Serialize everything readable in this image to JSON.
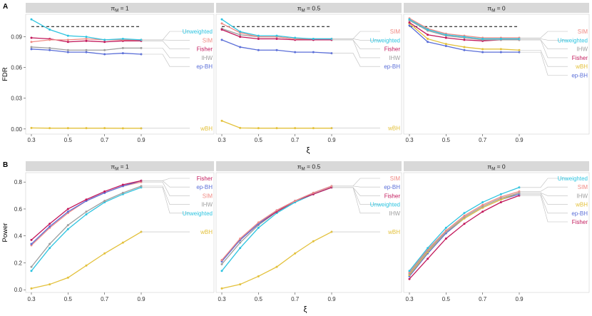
{
  "figure": {
    "panel_A_letter": "A",
    "panel_B_letter": "B",
    "xlabel": "ξ",
    "strip_prefix": "π",
    "strip_sub": "M",
    "strip_values": [
      "1",
      "0.5",
      "0"
    ]
  },
  "colors": {
    "Unweighted": "#2ec4e0",
    "SIM": "#f08a84",
    "Fisher": "#c2185b",
    "IHW": "#9e9e9e",
    "ep-BH": "#5b6fd8",
    "wBH": "#e3c13b",
    "reference_line": "#000000",
    "strip_bg": "#d9d9d9",
    "label_leader": "#bdbdbd"
  },
  "chart_data": [
    {
      "type": "line",
      "panel": "A",
      "facet": "πM = 1",
      "ylabel": "FDR",
      "xlabel": "ξ",
      "x": [
        0.3,
        0.4,
        0.5,
        0.6,
        0.7,
        0.8,
        0.9
      ],
      "xticks": [
        "0.3",
        "0.5",
        "0.7",
        "0.9"
      ],
      "ylim": [
        -0.005,
        0.112
      ],
      "yticks": [
        "0.00",
        "0.03",
        "0.06",
        "0.09"
      ],
      "reference_line": 0.1,
      "label_order": [
        "Unweighted",
        "SIM",
        "Fisher",
        "IHW",
        "ep-BH",
        "wBH"
      ],
      "series": [
        {
          "name": "Unweighted",
          "values": [
            0.107,
            0.097,
            0.091,
            0.09,
            0.087,
            0.088,
            0.087
          ]
        },
        {
          "name": "SIM",
          "values": [
            0.085,
            0.087,
            0.087,
            0.088,
            0.087,
            0.087,
            0.087
          ]
        },
        {
          "name": "Fisher",
          "values": [
            0.089,
            0.088,
            0.085,
            0.086,
            0.085,
            0.086,
            0.086
          ]
        },
        {
          "name": "IHW",
          "values": [
            0.08,
            0.079,
            0.077,
            0.077,
            0.077,
            0.079,
            0.079
          ]
        },
        {
          "name": "ep-BH",
          "values": [
            0.078,
            0.077,
            0.075,
            0.075,
            0.073,
            0.074,
            0.073
          ]
        },
        {
          "name": "wBH",
          "values": [
            0.001,
            0.0008,
            0.0008,
            0.0008,
            0.0008,
            0.0007,
            0.0007
          ]
        }
      ]
    },
    {
      "type": "line",
      "panel": "A",
      "facet": "πM = 0.5",
      "ylabel": "FDR",
      "xlabel": "ξ",
      "x": [
        0.3,
        0.4,
        0.5,
        0.6,
        0.7,
        0.8,
        0.9
      ],
      "xticks": [
        "0.3",
        "0.5",
        "0.7",
        "0.9"
      ],
      "ylim": [
        -0.005,
        0.112
      ],
      "reference_line": 0.1,
      "label_order": [
        "SIM",
        "Unweighted",
        "Fisher",
        "IHW",
        "ep-BH",
        "wBH"
      ],
      "series": [
        {
          "name": "Unweighted",
          "values": [
            0.107,
            0.095,
            0.091,
            0.091,
            0.089,
            0.088,
            0.088
          ]
        },
        {
          "name": "SIM",
          "values": [
            0.103,
            0.094,
            0.09,
            0.09,
            0.088,
            0.088,
            0.088
          ]
        },
        {
          "name": "Fisher",
          "values": [
            0.097,
            0.09,
            0.088,
            0.088,
            0.087,
            0.087,
            0.087
          ]
        },
        {
          "name": "IHW",
          "values": [
            0.098,
            0.092,
            0.09,
            0.09,
            0.088,
            0.087,
            0.087
          ]
        },
        {
          "name": "ep-BH",
          "values": [
            0.087,
            0.08,
            0.077,
            0.077,
            0.075,
            0.075,
            0.074
          ]
        },
        {
          "name": "wBH",
          "values": [
            0.008,
            0.001,
            0.0008,
            0.0008,
            0.0008,
            0.0008,
            0.0008
          ]
        }
      ]
    },
    {
      "type": "line",
      "panel": "A",
      "facet": "πM = 0",
      "ylabel": "FDR",
      "xlabel": "ξ",
      "x": [
        0.3,
        0.4,
        0.5,
        0.6,
        0.7,
        0.8,
        0.9
      ],
      "xticks": [
        "0.3",
        "0.5",
        "0.7",
        "0.9"
      ],
      "ylim": [
        -0.005,
        0.112
      ],
      "reference_line": 0.1,
      "label_order": [
        "SIM",
        "Unweighted",
        "IHW",
        "Fisher",
        "wBH",
        "ep-BH"
      ],
      "series": [
        {
          "name": "Unweighted",
          "values": [
            0.107,
            0.097,
            0.092,
            0.09,
            0.088,
            0.088,
            0.088
          ]
        },
        {
          "name": "SIM",
          "values": [
            0.108,
            0.098,
            0.093,
            0.091,
            0.089,
            0.089,
            0.089
          ]
        },
        {
          "name": "IHW",
          "values": [
            0.106,
            0.096,
            0.091,
            0.089,
            0.087,
            0.087,
            0.087
          ]
        },
        {
          "name": "Fisher",
          "values": [
            0.104,
            0.092,
            0.089,
            0.087,
            0.086,
            0.087,
            0.087
          ]
        },
        {
          "name": "wBH",
          "values": [
            0.103,
            0.088,
            0.083,
            0.08,
            0.078,
            0.078,
            0.077
          ]
        },
        {
          "name": "ep-BH",
          "values": [
            0.101,
            0.085,
            0.081,
            0.077,
            0.075,
            0.075,
            0.075
          ]
        }
      ]
    },
    {
      "type": "line",
      "panel": "B",
      "facet": "πM = 1",
      "ylabel": "Power",
      "xlabel": "ξ",
      "x": [
        0.3,
        0.4,
        0.5,
        0.6,
        0.7,
        0.8,
        0.9
      ],
      "xticks": [
        "0.3",
        "0.5",
        "0.7",
        "0.9"
      ],
      "ylim": [
        -0.02,
        0.87
      ],
      "yticks": [
        "0.0",
        "0.2",
        "0.4",
        "0.6",
        "0.8"
      ],
      "label_order": [
        "Fisher",
        "ep-BH",
        "SIM",
        "IHW",
        "Unweighted",
        "wBH"
      ],
      "series": [
        {
          "name": "Fisher",
          "values": [
            0.37,
            0.49,
            0.6,
            0.67,
            0.73,
            0.78,
            0.81
          ]
        },
        {
          "name": "ep-BH",
          "values": [
            0.34,
            0.47,
            0.58,
            0.66,
            0.72,
            0.77,
            0.81
          ]
        },
        {
          "name": "SIM",
          "values": [
            0.33,
            0.46,
            0.57,
            0.66,
            0.72,
            0.77,
            0.8
          ]
        },
        {
          "name": "IHW",
          "values": [
            0.17,
            0.34,
            0.48,
            0.58,
            0.66,
            0.72,
            0.77
          ]
        },
        {
          "name": "Unweighted",
          "values": [
            0.14,
            0.31,
            0.45,
            0.56,
            0.65,
            0.71,
            0.76
          ]
        },
        {
          "name": "wBH",
          "values": [
            0.01,
            0.04,
            0.09,
            0.18,
            0.27,
            0.35,
            0.43
          ]
        }
      ]
    },
    {
      "type": "line",
      "panel": "B",
      "facet": "πM = 0.5",
      "ylabel": "Power",
      "xlabel": "ξ",
      "x": [
        0.3,
        0.4,
        0.5,
        0.6,
        0.7,
        0.8,
        0.9
      ],
      "xticks": [
        "0.3",
        "0.5",
        "0.7",
        "0.9"
      ],
      "ylim": [
        -0.02,
        0.87
      ],
      "label_order": [
        "SIM",
        "ep-BH",
        "Fisher",
        "Unweighted",
        "IHW",
        "wBH"
      ],
      "series": [
        {
          "name": "SIM",
          "values": [
            0.22,
            0.38,
            0.5,
            0.59,
            0.66,
            0.72,
            0.77
          ]
        },
        {
          "name": "ep-BH",
          "values": [
            0.21,
            0.37,
            0.49,
            0.59,
            0.66,
            0.72,
            0.77
          ]
        },
        {
          "name": "Fisher",
          "values": [
            0.22,
            0.37,
            0.49,
            0.58,
            0.66,
            0.71,
            0.76
          ]
        },
        {
          "name": "Unweighted",
          "values": [
            0.14,
            0.31,
            0.46,
            0.57,
            0.65,
            0.71,
            0.76
          ]
        },
        {
          "name": "IHW",
          "values": [
            0.19,
            0.35,
            0.48,
            0.58,
            0.65,
            0.71,
            0.76
          ]
        },
        {
          "name": "wBH",
          "values": [
            0.01,
            0.04,
            0.1,
            0.17,
            0.27,
            0.36,
            0.43
          ]
        }
      ]
    },
    {
      "type": "line",
      "panel": "B",
      "facet": "πM = 0",
      "ylabel": "Power",
      "xlabel": "ξ",
      "x": [
        0.3,
        0.4,
        0.5,
        0.6,
        0.7,
        0.8,
        0.9
      ],
      "xticks": [
        "0.3",
        "0.5",
        "0.7",
        "0.9"
      ],
      "ylim": [
        -0.02,
        0.87
      ],
      "label_order": [
        "Unweighted",
        "SIM",
        "IHW",
        "wBH",
        "ep-BH",
        "Fisher"
      ],
      "series": [
        {
          "name": "Unweighted",
          "values": [
            0.14,
            0.31,
            0.46,
            0.57,
            0.65,
            0.71,
            0.76
          ]
        },
        {
          "name": "SIM",
          "values": [
            0.13,
            0.3,
            0.44,
            0.55,
            0.63,
            0.69,
            0.73
          ]
        },
        {
          "name": "IHW",
          "values": [
            0.12,
            0.29,
            0.43,
            0.54,
            0.62,
            0.68,
            0.72
          ]
        },
        {
          "name": "wBH",
          "values": [
            0.11,
            0.28,
            0.43,
            0.53,
            0.61,
            0.67,
            0.72
          ]
        },
        {
          "name": "ep-BH",
          "values": [
            0.1,
            0.27,
            0.42,
            0.53,
            0.61,
            0.67,
            0.71
          ]
        },
        {
          "name": "Fisher",
          "values": [
            0.08,
            0.23,
            0.38,
            0.49,
            0.58,
            0.65,
            0.7
          ]
        }
      ]
    }
  ]
}
